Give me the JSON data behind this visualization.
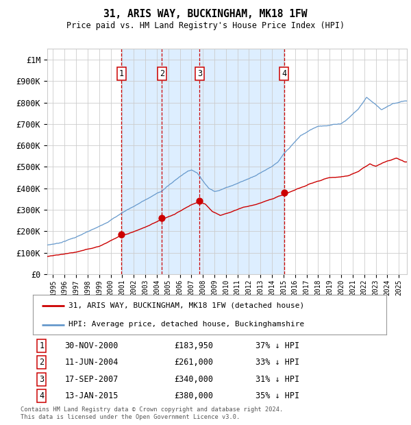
{
  "title": "31, ARIS WAY, BUCKINGHAM, MK18 1FW",
  "subtitle": "Price paid vs. HM Land Registry's House Price Index (HPI)",
  "footer": "Contains HM Land Registry data © Crown copyright and database right 2024.\nThis data is licensed under the Open Government Licence v3.0.",
  "legend_red": "31, ARIS WAY, BUCKINGHAM, MK18 1FW (detached house)",
  "legend_blue": "HPI: Average price, detached house, Buckinghamshire",
  "sales": [
    {
      "num": 1,
      "date_label": "30-NOV-2000",
      "price_label": "£183,950",
      "pct_label": "37% ↓ HPI",
      "year": 2000.92
    },
    {
      "num": 2,
      "date_label": "11-JUN-2004",
      "price_label": "£261,000",
      "pct_label": "33% ↓ HPI",
      "year": 2004.44
    },
    {
      "num": 3,
      "date_label": "17-SEP-2007",
      "price_label": "£340,000",
      "pct_label": "31% ↓ HPI",
      "year": 2007.71
    },
    {
      "num": 4,
      "date_label": "13-JAN-2015",
      "price_label": "£380,000",
      "pct_label": "35% ↓ HPI",
      "year": 2015.04
    }
  ],
  "sale_prices": [
    183950,
    261000,
    340000,
    380000
  ],
  "red_line_color": "#cc0000",
  "blue_line_color": "#6699cc",
  "shading_color": "#ddeeff",
  "grid_color": "#cccccc",
  "dashed_line_color": "#cc0000",
  "background_color": "#ffffff",
  "ylim": [
    0,
    1050000
  ],
  "xlim_start": 1994.5,
  "xlim_end": 2025.7,
  "yticks": [
    0,
    100000,
    200000,
    300000,
    400000,
    500000,
    600000,
    700000,
    800000,
    900000,
    1000000
  ],
  "ytick_labels": [
    "£0",
    "£100K",
    "£200K",
    "£300K",
    "£400K",
    "£500K",
    "£600K",
    "£700K",
    "£800K",
    "£900K",
    "£1M"
  ]
}
